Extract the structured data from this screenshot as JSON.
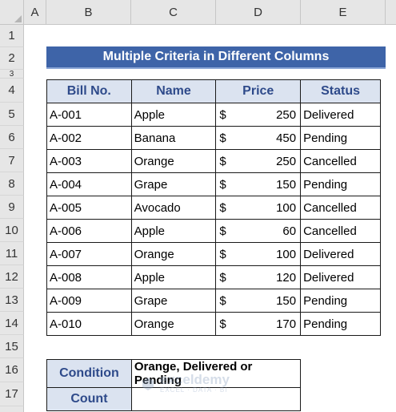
{
  "columns": [
    "A",
    "B",
    "C",
    "D",
    "E"
  ],
  "rows": [
    "1",
    "2",
    "3",
    "4",
    "5",
    "6",
    "7",
    "8",
    "9",
    "10",
    "11",
    "12",
    "13",
    "14",
    "15",
    "16",
    "17"
  ],
  "title": "Multiple Criteria in Different Columns",
  "headers": {
    "bill": "Bill No.",
    "name": "Name",
    "price": "Price",
    "status": "Status"
  },
  "currency": "$",
  "records": [
    {
      "bill": "A-001",
      "name": "Apple",
      "price": "250",
      "status": "Delivered"
    },
    {
      "bill": "A-002",
      "name": "Banana",
      "price": "450",
      "status": "Pending"
    },
    {
      "bill": "A-003",
      "name": "Orange",
      "price": "250",
      "status": "Cancelled"
    },
    {
      "bill": "A-004",
      "name": "Grape",
      "price": "150",
      "status": "Pending"
    },
    {
      "bill": "A-005",
      "name": "Avocado",
      "price": "100",
      "status": "Cancelled"
    },
    {
      "bill": "A-006",
      "name": "Apple",
      "price": "60",
      "status": "Cancelled"
    },
    {
      "bill": "A-007",
      "name": "Orange",
      "price": "100",
      "status": "Delivered"
    },
    {
      "bill": "A-008",
      "name": "Apple",
      "price": "120",
      "status": "Delivered"
    },
    {
      "bill": "A-009",
      "name": "Grape",
      "price": "150",
      "status": "Pending"
    },
    {
      "bill": "A-010",
      "name": "Orange",
      "price": "170",
      "status": "Pending"
    }
  ],
  "condition_label": "Condition",
  "condition_value": "Orange, Delivered or Pending",
  "count_label": "Count",
  "count_value": "",
  "watermark": {
    "name": "exceldemy",
    "tagline": "EXCEL · DATA · BI"
  },
  "colors": {
    "title_bg": "#3e64a8",
    "header_bg": "#dbe3f0",
    "header_text": "#2e4a8a"
  }
}
